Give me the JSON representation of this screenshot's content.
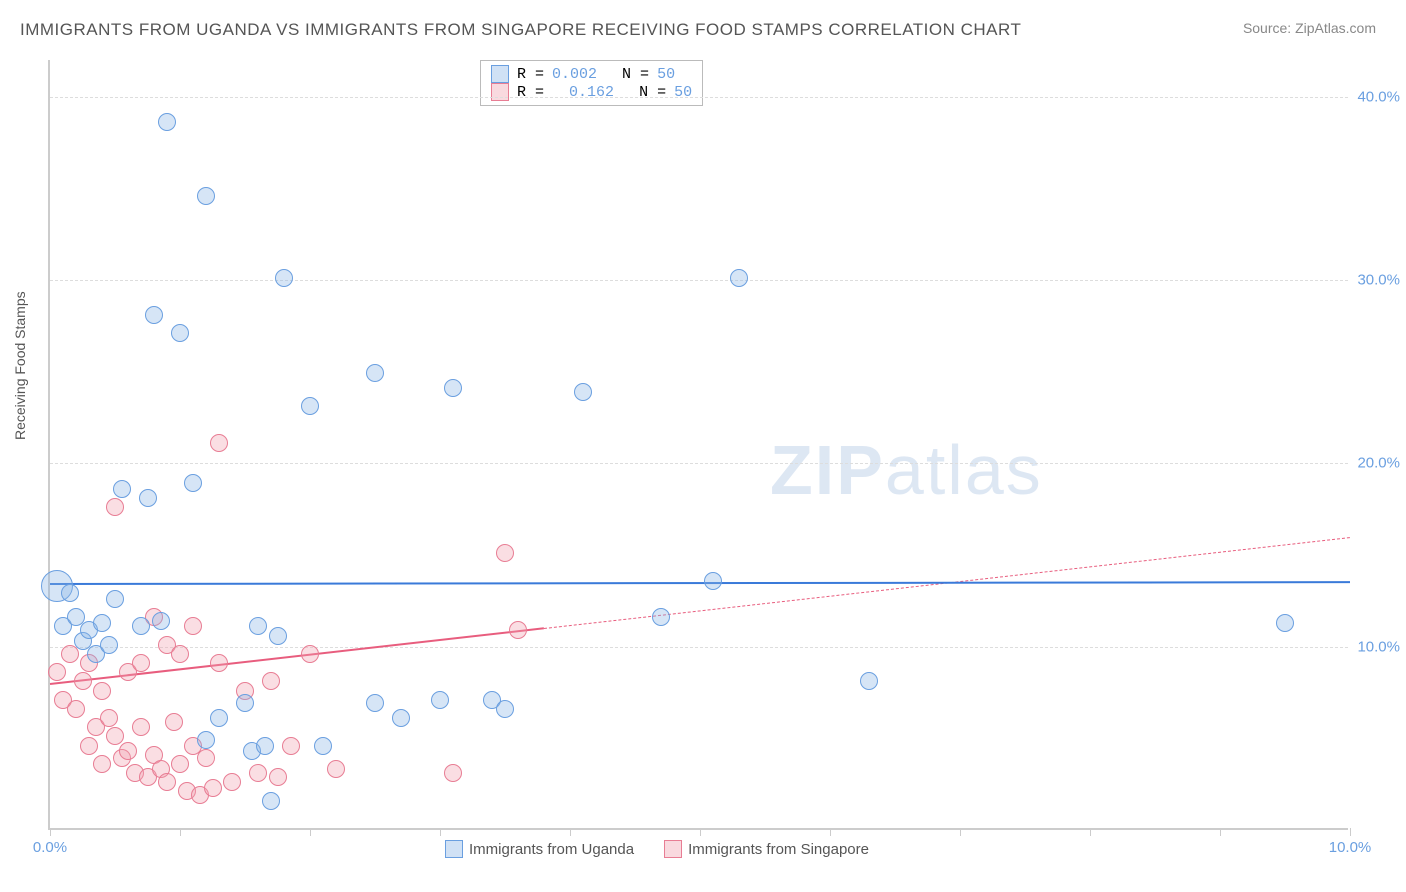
{
  "title": "IMMIGRANTS FROM UGANDA VS IMMIGRANTS FROM SINGAPORE RECEIVING FOOD STAMPS CORRELATION CHART",
  "source": "Source: ZipAtlas.com",
  "y_axis_label": "Receiving Food Stamps",
  "watermark_bold": "ZIP",
  "watermark_rest": "atlas",
  "chart": {
    "type": "scatter",
    "background_color": "#ffffff",
    "grid_color": "#dddddd",
    "axis_color": "#cccccc",
    "tick_label_color": "#6a9fe0",
    "xlim": [
      0,
      10
    ],
    "ylim": [
      0,
      42
    ],
    "x_ticks": [
      0,
      1,
      2,
      3,
      4,
      5,
      6,
      7,
      8,
      9,
      10
    ],
    "x_tick_labels": {
      "0": "0.0%",
      "10": "10.0%"
    },
    "y_ticks": [
      10,
      20,
      30,
      40
    ],
    "y_tick_labels": {
      "10": "10.0%",
      "20": "20.0%",
      "30": "30.0%",
      "40": "40.0%"
    },
    "series": {
      "uganda": {
        "label": "Immigrants from Uganda",
        "color_fill": "rgba(138,180,230,0.35)",
        "color_stroke": "#6a9fe0",
        "correlation_r": "0.002",
        "n": "50",
        "marker_radius": 9,
        "trend": {
          "x1": 0,
          "y1": 13.5,
          "x2": 10,
          "y2": 13.6,
          "color": "#3a7ad9",
          "width": 2.5,
          "solid_until_x": 10,
          "dash_after": false
        },
        "points": [
          {
            "x": 0.05,
            "y": 13.2,
            "r": 16
          },
          {
            "x": 0.1,
            "y": 11.0
          },
          {
            "x": 0.15,
            "y": 12.8
          },
          {
            "x": 0.2,
            "y": 11.5
          },
          {
            "x": 0.25,
            "y": 10.2
          },
          {
            "x": 0.3,
            "y": 10.8
          },
          {
            "x": 0.35,
            "y": 9.5
          },
          {
            "x": 0.4,
            "y": 11.2
          },
          {
            "x": 0.45,
            "y": 10.0
          },
          {
            "x": 0.5,
            "y": 12.5
          },
          {
            "x": 0.55,
            "y": 18.5
          },
          {
            "x": 0.7,
            "y": 11.0
          },
          {
            "x": 0.75,
            "y": 18.0
          },
          {
            "x": 0.8,
            "y": 28.0
          },
          {
            "x": 0.85,
            "y": 11.3
          },
          {
            "x": 0.9,
            "y": 38.5
          },
          {
            "x": 1.0,
            "y": 27.0
          },
          {
            "x": 1.1,
            "y": 18.8
          },
          {
            "x": 1.2,
            "y": 34.5
          },
          {
            "x": 1.2,
            "y": 4.8
          },
          {
            "x": 1.3,
            "y": 6.0
          },
          {
            "x": 1.5,
            "y": 6.8
          },
          {
            "x": 1.55,
            "y": 4.2
          },
          {
            "x": 1.6,
            "y": 11.0
          },
          {
            "x": 1.65,
            "y": 4.5
          },
          {
            "x": 1.7,
            "y": 1.5
          },
          {
            "x": 1.75,
            "y": 10.5
          },
          {
            "x": 1.8,
            "y": 30.0
          },
          {
            "x": 2.0,
            "y": 23.0
          },
          {
            "x": 2.1,
            "y": 4.5
          },
          {
            "x": 2.5,
            "y": 24.8
          },
          {
            "x": 2.5,
            "y": 6.8
          },
          {
            "x": 2.7,
            "y": 6.0
          },
          {
            "x": 3.0,
            "y": 7.0
          },
          {
            "x": 3.1,
            "y": 24.0
          },
          {
            "x": 3.4,
            "y": 7.0
          },
          {
            "x": 3.5,
            "y": 6.5
          },
          {
            "x": 4.1,
            "y": 23.8
          },
          {
            "x": 4.7,
            "y": 11.5
          },
          {
            "x": 5.1,
            "y": 13.5
          },
          {
            "x": 5.3,
            "y": 30.0
          },
          {
            "x": 6.3,
            "y": 8.0
          },
          {
            "x": 9.5,
            "y": 11.2
          }
        ]
      },
      "singapore": {
        "label": "Immigrants from Singapore",
        "color_fill": "rgba(240,160,175,0.35)",
        "color_stroke": "#e87d94",
        "correlation_r": "0.162",
        "n": "50",
        "marker_radius": 9,
        "trend": {
          "x1": 0,
          "y1": 8.0,
          "x2": 10,
          "y2": 16.0,
          "color": "#e85d7e",
          "width": 2,
          "solid_until_x": 3.8,
          "dash_after": true
        },
        "points": [
          {
            "x": 0.05,
            "y": 8.5
          },
          {
            "x": 0.1,
            "y": 7.0
          },
          {
            "x": 0.15,
            "y": 9.5
          },
          {
            "x": 0.2,
            "y": 6.5
          },
          {
            "x": 0.25,
            "y": 8.0
          },
          {
            "x": 0.3,
            "y": 9.0
          },
          {
            "x": 0.3,
            "y": 4.5
          },
          {
            "x": 0.35,
            "y": 5.5
          },
          {
            "x": 0.4,
            "y": 7.5
          },
          {
            "x": 0.4,
            "y": 3.5
          },
          {
            "x": 0.45,
            "y": 6.0
          },
          {
            "x": 0.5,
            "y": 5.0
          },
          {
            "x": 0.5,
            "y": 17.5
          },
          {
            "x": 0.55,
            "y": 3.8
          },
          {
            "x": 0.6,
            "y": 8.5
          },
          {
            "x": 0.6,
            "y": 4.2
          },
          {
            "x": 0.65,
            "y": 3.0
          },
          {
            "x": 0.7,
            "y": 9.0
          },
          {
            "x": 0.7,
            "y": 5.5
          },
          {
            "x": 0.75,
            "y": 2.8
          },
          {
            "x": 0.8,
            "y": 11.5
          },
          {
            "x": 0.8,
            "y": 4.0
          },
          {
            "x": 0.85,
            "y": 3.2
          },
          {
            "x": 0.9,
            "y": 10.0
          },
          {
            "x": 0.9,
            "y": 2.5
          },
          {
            "x": 0.95,
            "y": 5.8
          },
          {
            "x": 1.0,
            "y": 3.5
          },
          {
            "x": 1.0,
            "y": 9.5
          },
          {
            "x": 1.05,
            "y": 2.0
          },
          {
            "x": 1.1,
            "y": 4.5
          },
          {
            "x": 1.1,
            "y": 11.0
          },
          {
            "x": 1.15,
            "y": 1.8
          },
          {
            "x": 1.2,
            "y": 3.8
          },
          {
            "x": 1.25,
            "y": 2.2
          },
          {
            "x": 1.3,
            "y": 9.0
          },
          {
            "x": 1.3,
            "y": 21.0
          },
          {
            "x": 1.4,
            "y": 2.5
          },
          {
            "x": 1.5,
            "y": 7.5
          },
          {
            "x": 1.6,
            "y": 3.0
          },
          {
            "x": 1.7,
            "y": 8.0
          },
          {
            "x": 1.75,
            "y": 2.8
          },
          {
            "x": 1.85,
            "y": 4.5
          },
          {
            "x": 2.0,
            "y": 9.5
          },
          {
            "x": 2.2,
            "y": 3.2
          },
          {
            "x": 3.1,
            "y": 3.0
          },
          {
            "x": 3.5,
            "y": 15.0
          },
          {
            "x": 3.6,
            "y": 10.8
          }
        ]
      }
    }
  },
  "legend_top": {
    "r_label": "R =",
    "n_label": "N ="
  }
}
